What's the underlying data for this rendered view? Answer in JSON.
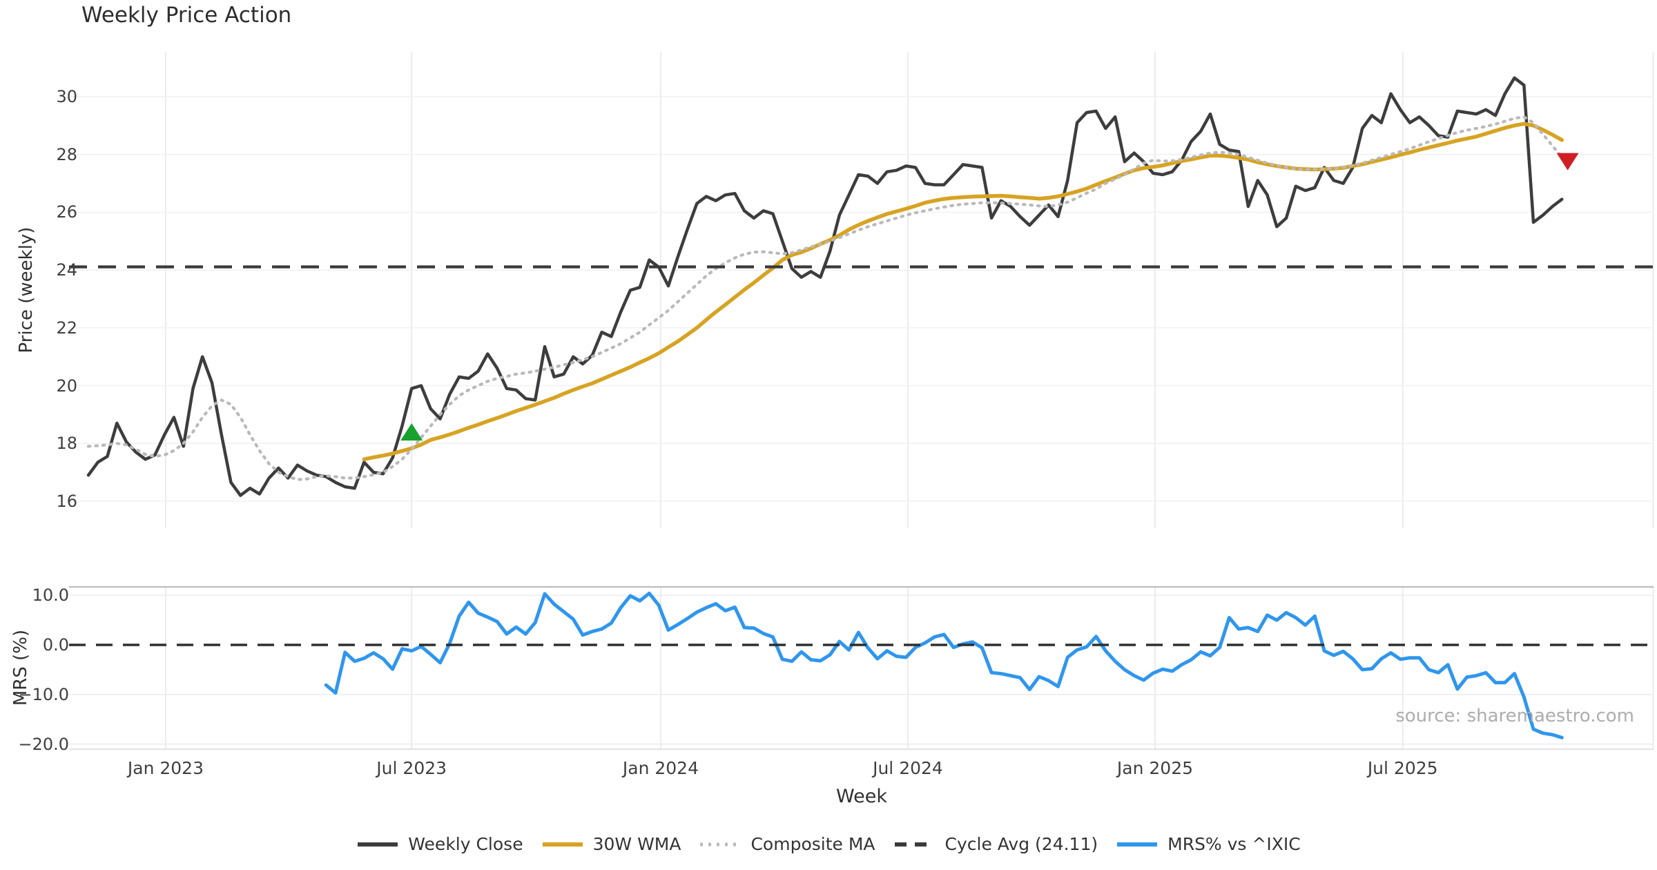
{
  "title": "Weekly Price Action",
  "xlabel": "Week",
  "source": "source: sharemaestro.com",
  "colors": {
    "close": "#3d3d3d",
    "wma": "#d7a322",
    "composite": "#b9b9b9",
    "cycle_avg": "#3a3a3a",
    "mrs": "#2f96ed",
    "marker_up": "#17a22e",
    "marker_down": "#d01f24",
    "grid": "#ebebf1",
    "grid_light": "#f1f1f5",
    "spine": "#bcbcc2",
    "spine_light": "#d9d9df"
  },
  "legend": [
    {
      "label": "Weekly Close",
      "style": "solid",
      "color": "#3d3d3d"
    },
    {
      "label": "30W WMA",
      "style": "solid",
      "color": "#d7a322"
    },
    {
      "label": "Composite MA",
      "style": "dotted",
      "color": "#b9b9b9"
    },
    {
      "label": "Cycle Avg (24.11)",
      "style": "dashed",
      "color": "#3a3a3a"
    },
    {
      "label": "MRS% vs ^IXIC",
      "style": "solid",
      "color": "#2f96ed"
    }
  ],
  "chart_data": {
    "type": "line",
    "x_unit": "week_index",
    "xlabel": "Week",
    "x_ticks": [
      {
        "label": "Jan 2023",
        "week": 8.13
      },
      {
        "label": "Jul 2023",
        "week": 34.0
      },
      {
        "label": "Jan 2024",
        "week": 60.2
      },
      {
        "label": "Jul 2024",
        "week": 86.2
      },
      {
        "label": "Jan 2025",
        "week": 112.2
      },
      {
        "label": "Jul 2025",
        "week": 138.25
      },
      {
        "label": "",
        "week": 164.6
      }
    ],
    "panels": [
      {
        "name": "price",
        "ylabel": "Price (weekly)",
        "ylim": [
          15.1,
          31.6
        ],
        "yticks": [
          16,
          18,
          20,
          22,
          24,
          26,
          28,
          30
        ],
        "series": [
          {
            "name": "Weekly Close",
            "style": "solid",
            "color": "#3d3d3d",
            "start_week": 0,
            "values": [
              16.9,
              17.35,
              17.55,
              18.7,
              18.05,
              17.7,
              17.45,
              17.6,
              18.3,
              18.9,
              17.9,
              19.9,
              21.0,
              20.1,
              18.3,
              16.65,
              16.2,
              16.45,
              16.25,
              16.8,
              17.15,
              16.8,
              17.25,
              17.05,
              16.9,
              16.85,
              16.65,
              16.5,
              16.45,
              17.35,
              17.0,
              16.95,
              17.5,
              18.6,
              19.9,
              20.0,
              19.2,
              18.85,
              19.7,
              20.3,
              20.25,
              20.5,
              21.1,
              20.6,
              19.9,
              19.85,
              19.55,
              19.5,
              21.35,
              20.3,
              20.4,
              21.0,
              20.75,
              21.05,
              21.85,
              21.7,
              22.55,
              23.3,
              23.4,
              24.35,
              24.1,
              23.45,
              24.45,
              25.4,
              26.3,
              26.55,
              26.4,
              26.6,
              26.65,
              26.05,
              25.8,
              26.05,
              25.95,
              25.0,
              24.05,
              23.75,
              23.95,
              23.75,
              24.65,
              25.9,
              26.6,
              27.3,
              27.25,
              27.0,
              27.4,
              27.45,
              27.6,
              27.55,
              27.0,
              26.95,
              26.95,
              27.3,
              27.65,
              27.6,
              27.55,
              25.8,
              26.4,
              26.2,
              25.85,
              25.55,
              25.9,
              26.25,
              25.85,
              27.1,
              29.1,
              29.45,
              29.5,
              28.9,
              29.3,
              27.75,
              28.05,
              27.75,
              27.35,
              27.3,
              27.4,
              27.8,
              28.45,
              28.8,
              29.4,
              28.35,
              28.15,
              28.1,
              26.2,
              27.1,
              26.6,
              25.5,
              25.8,
              26.9,
              26.75,
              26.85,
              27.55,
              27.1,
              27.0,
              27.55,
              28.9,
              29.35,
              29.1,
              30.1,
              29.55,
              29.1,
              29.3,
              29.0,
              28.65,
              28.6,
              29.5,
              29.45,
              29.4,
              29.55,
              29.35,
              30.1,
              30.65,
              30.4,
              25.65,
              25.9,
              26.2,
              26.45
            ]
          },
          {
            "name": "30W WMA",
            "style": "solid",
            "color": "#d7a322",
            "start_week": 29,
            "values": [
              17.45,
              17.52,
              17.58,
              17.65,
              17.74,
              17.83,
              17.96,
              18.12,
              18.21,
              18.31,
              18.42,
              18.54,
              18.65,
              18.77,
              18.88,
              19.0,
              19.12,
              19.23,
              19.34,
              19.46,
              19.58,
              19.72,
              19.85,
              19.97,
              20.08,
              20.22,
              20.36,
              20.5,
              20.64,
              20.8,
              20.95,
              21.12,
              21.33,
              21.53,
              21.76,
              22.0,
              22.28,
              22.55,
              22.8,
              23.06,
              23.32,
              23.56,
              23.82,
              24.07,
              24.35,
              24.52,
              24.62,
              24.75,
              24.9,
              25.04,
              25.2,
              25.4,
              25.56,
              25.7,
              25.82,
              25.94,
              26.03,
              26.12,
              26.22,
              26.33,
              26.4,
              26.46,
              26.5,
              26.52,
              26.54,
              26.55,
              26.56,
              26.57,
              26.55,
              26.52,
              26.5,
              26.47,
              26.5,
              26.55,
              26.63,
              26.72,
              26.82,
              26.95,
              27.08,
              27.2,
              27.33,
              27.45,
              27.53,
              27.57,
              27.62,
              27.7,
              27.77,
              27.83,
              27.9,
              27.96,
              27.96,
              27.93,
              27.88,
              27.82,
              27.73,
              27.66,
              27.6,
              27.55,
              27.51,
              27.49,
              27.48,
              27.49,
              27.51,
              27.54,
              27.6,
              27.66,
              27.74,
              27.82,
              27.9,
              27.99,
              28.07,
              28.16,
              28.24,
              28.32,
              28.4,
              28.48,
              28.55,
              28.62,
              28.72,
              28.82,
              28.92,
              29.0,
              29.06,
              29.0,
              28.85,
              28.68,
              28.5
            ]
          },
          {
            "name": "Composite MA",
            "style": "dotted",
            "color": "#b9b9b9",
            "start_week": 0,
            "values": [
              17.9,
              17.92,
              17.95,
              18.0,
              17.95,
              17.8,
              17.62,
              17.55,
              17.6,
              17.75,
              18.0,
              18.4,
              18.9,
              19.3,
              19.5,
              19.35,
              18.9,
              18.3,
              17.75,
              17.3,
              17.0,
              16.85,
              16.75,
              16.77,
              16.85,
              16.88,
              16.85,
              16.8,
              16.8,
              16.85,
              16.92,
              17.0,
              17.2,
              17.45,
              17.8,
              18.2,
              18.6,
              19.0,
              19.35,
              19.65,
              19.85,
              20.0,
              20.15,
              20.25,
              20.32,
              20.4,
              20.44,
              20.5,
              20.57,
              20.64,
              20.72,
              20.8,
              20.9,
              21.0,
              21.15,
              21.3,
              21.45,
              21.65,
              21.85,
              22.1,
              22.35,
              22.6,
              22.9,
              23.2,
              23.5,
              23.8,
              24.05,
              24.25,
              24.42,
              24.55,
              24.62,
              24.63,
              24.6,
              24.56,
              24.6,
              24.7,
              24.8,
              24.9,
              25.0,
              25.12,
              25.25,
              25.38,
              25.5,
              25.6,
              25.7,
              25.8,
              25.9,
              25.98,
              26.05,
              26.12,
              26.18,
              26.24,
              26.28,
              26.3,
              26.33,
              26.33,
              26.32,
              26.3,
              26.28,
              26.25,
              26.22,
              26.2,
              26.25,
              26.35,
              26.5,
              26.66,
              26.8,
              27.0,
              27.15,
              27.3,
              27.5,
              27.7,
              27.8,
              27.77,
              27.78,
              27.82,
              27.9,
              27.98,
              28.05,
              28.08,
              28.05,
              28.0,
              27.9,
              27.8,
              27.7,
              27.62,
              27.55,
              27.5,
              27.48,
              27.48,
              27.5,
              27.52,
              27.56,
              27.62,
              27.7,
              27.8,
              27.9,
              28.0,
              28.1,
              28.2,
              28.32,
              28.44,
              28.55,
              28.66,
              28.76,
              28.84,
              28.9,
              28.97,
              29.05,
              29.15,
              29.25,
              29.3,
              29.1,
              28.7,
              28.3,
              27.9
            ]
          },
          {
            "name": "Cycle Avg (24.11)",
            "style": "dashed",
            "color": "#3a3a3a",
            "hline": 24.11
          }
        ],
        "markers": [
          {
            "shape": "triangle-up",
            "color": "#17a22e",
            "week": 34,
            "value": 18.4
          },
          {
            "shape": "triangle-down",
            "color": "#d01f24",
            "week": 155.6,
            "value": 27.75
          }
        ]
      },
      {
        "name": "mrs",
        "ylabel": "MRS (%)",
        "ylim": [
          -21.1,
          11.7
        ],
        "yticks": [
          10,
          0,
          -10,
          -20
        ],
        "ytick_labels": [
          "10.0",
          "0.0",
          "−10.0",
          "−20.0"
        ],
        "series": [
          {
            "name": "MRS% vs ^IXIC",
            "style": "solid",
            "color": "#2f96ed",
            "start_week": 25,
            "values": [
              -8.1,
              -9.7,
              -1.5,
              -3.3,
              -2.7,
              -1.6,
              -2.8,
              -4.9,
              -0.8,
              -1.2,
              -0.3,
              -1.9,
              -3.6,
              0.3,
              5.8,
              8.6,
              6.4,
              5.6,
              4.7,
              2.2,
              3.6,
              2.2,
              4.5,
              10.3,
              8.2,
              6.7,
              5.2,
              2.0,
              2.7,
              3.2,
              4.4,
              7.5,
              9.9,
              8.9,
              10.4,
              8.0,
              3.0,
              4.1,
              5.3,
              6.6,
              7.5,
              8.3,
              6.9,
              7.6,
              3.5,
              3.4,
              2.3,
              1.6,
              -2.9,
              -3.3,
              -1.4,
              -3.0,
              -3.2,
              -2.0,
              0.7,
              -1.0,
              2.5,
              -0.6,
              -2.8,
              -1.2,
              -2.3,
              -2.5,
              -0.5,
              0.4,
              1.6,
              2.1,
              -0.5,
              0.2,
              0.6,
              -0.6,
              -5.6,
              -5.8,
              -6.2,
              -6.6,
              -9.0,
              -6.4,
              -7.2,
              -8.4,
              -2.5,
              -1.0,
              -0.4,
              1.7,
              -1.2,
              -3.3,
              -5.0,
              -6.2,
              -7.1,
              -5.7,
              -4.9,
              -5.3,
              -4.0,
              -3.0,
              -1.4,
              -2.2,
              -0.5,
              5.5,
              3.2,
              3.5,
              2.7,
              6.0,
              5.0,
              6.5,
              5.5,
              4.0,
              5.8,
              -1.2,
              -2.1,
              -1.3,
              -2.8,
              -5.0,
              -4.8,
              -2.8,
              -1.6,
              -2.9,
              -2.6,
              -2.6,
              -5.0,
              -5.6,
              -4.0,
              -8.9,
              -6.5,
              -6.2,
              -5.6,
              -7.6,
              -7.6,
              -5.8,
              -10.5,
              -17.0,
              -17.8,
              -18.1,
              -18.7
            ]
          },
          {
            "name": "zero-line",
            "style": "dashed",
            "color": "#2e2e2e",
            "hline": 0
          }
        ]
      }
    ]
  }
}
